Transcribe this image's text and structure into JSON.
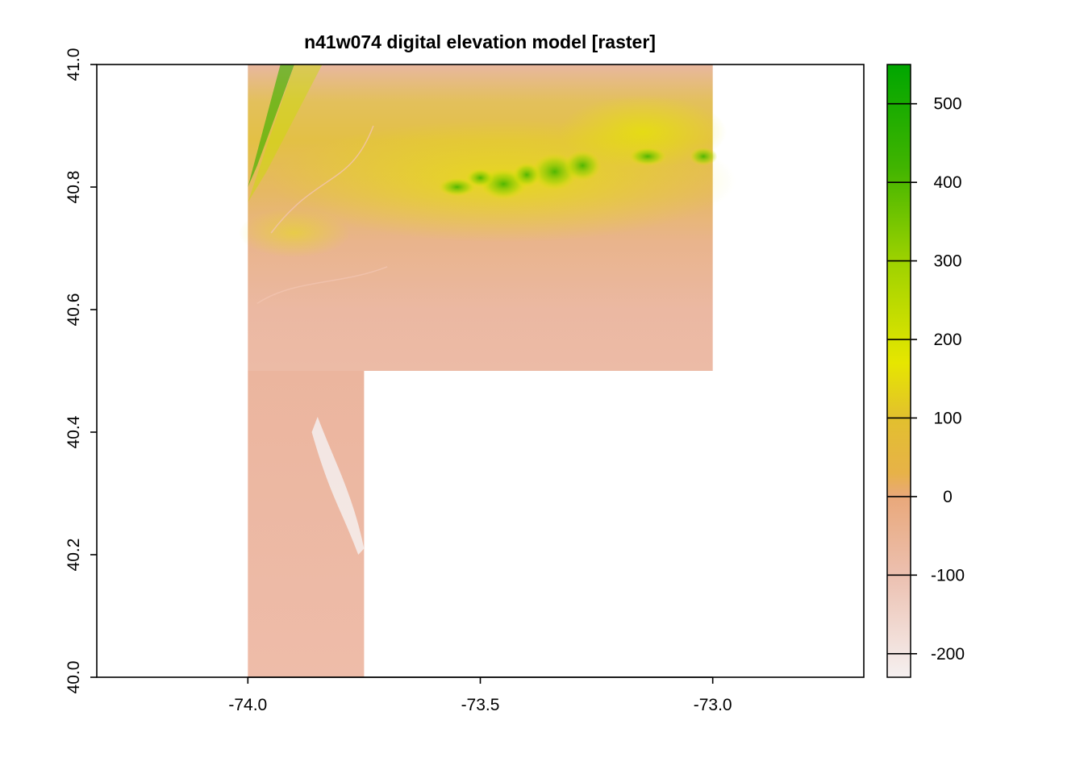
{
  "chart_data": {
    "type": "heatmap",
    "title": "n41w074 digital elevation model [raster]",
    "xlabel": "",
    "ylabel": "",
    "xlim": [
      -74.325,
      -72.675
    ],
    "ylim": [
      40.0,
      41.0
    ],
    "x_ticks": [
      -74.0,
      -73.5,
      -73.0
    ],
    "x_tick_labels": [
      "-74.0",
      "-73.5",
      "-73.0"
    ],
    "y_ticks": [
      40.0,
      40.2,
      40.4,
      40.6,
      40.8,
      41.0
    ],
    "y_tick_labels": [
      "40.0",
      "40.2",
      "40.4",
      "40.6",
      "40.8",
      "41.0"
    ],
    "data_extent": {
      "upper_block": {
        "x": [
          -74.0,
          -73.0
        ],
        "y": [
          40.5,
          41.0
        ]
      },
      "lower_block": {
        "x": [
          -74.0,
          -73.75
        ],
        "y": [
          40.0,
          40.5
        ]
      }
    },
    "colorbar": {
      "range": [
        -230,
        550
      ],
      "ticks": [
        -200,
        -100,
        0,
        100,
        200,
        300,
        400,
        500
      ],
      "tick_labels": [
        "-200",
        "-100",
        "0",
        "100",
        "200",
        "300",
        "400",
        "500"
      ],
      "gradient_stops": [
        {
          "value": -230,
          "color": "#f5f0f0"
        },
        {
          "value": -100,
          "color": "#ecc0b0"
        },
        {
          "value": 0,
          "color": "#e9a87a"
        },
        {
          "value": 30,
          "color": "#e7b248"
        },
        {
          "value": 100,
          "color": "#e2c02e"
        },
        {
          "value": 170,
          "color": "#e6e600"
        },
        {
          "value": 300,
          "color": "#9dd200"
        },
        {
          "value": 420,
          "color": "#40b400"
        },
        {
          "value": 550,
          "color": "#00a600"
        }
      ]
    },
    "grid": false,
    "legend_position": "right"
  }
}
